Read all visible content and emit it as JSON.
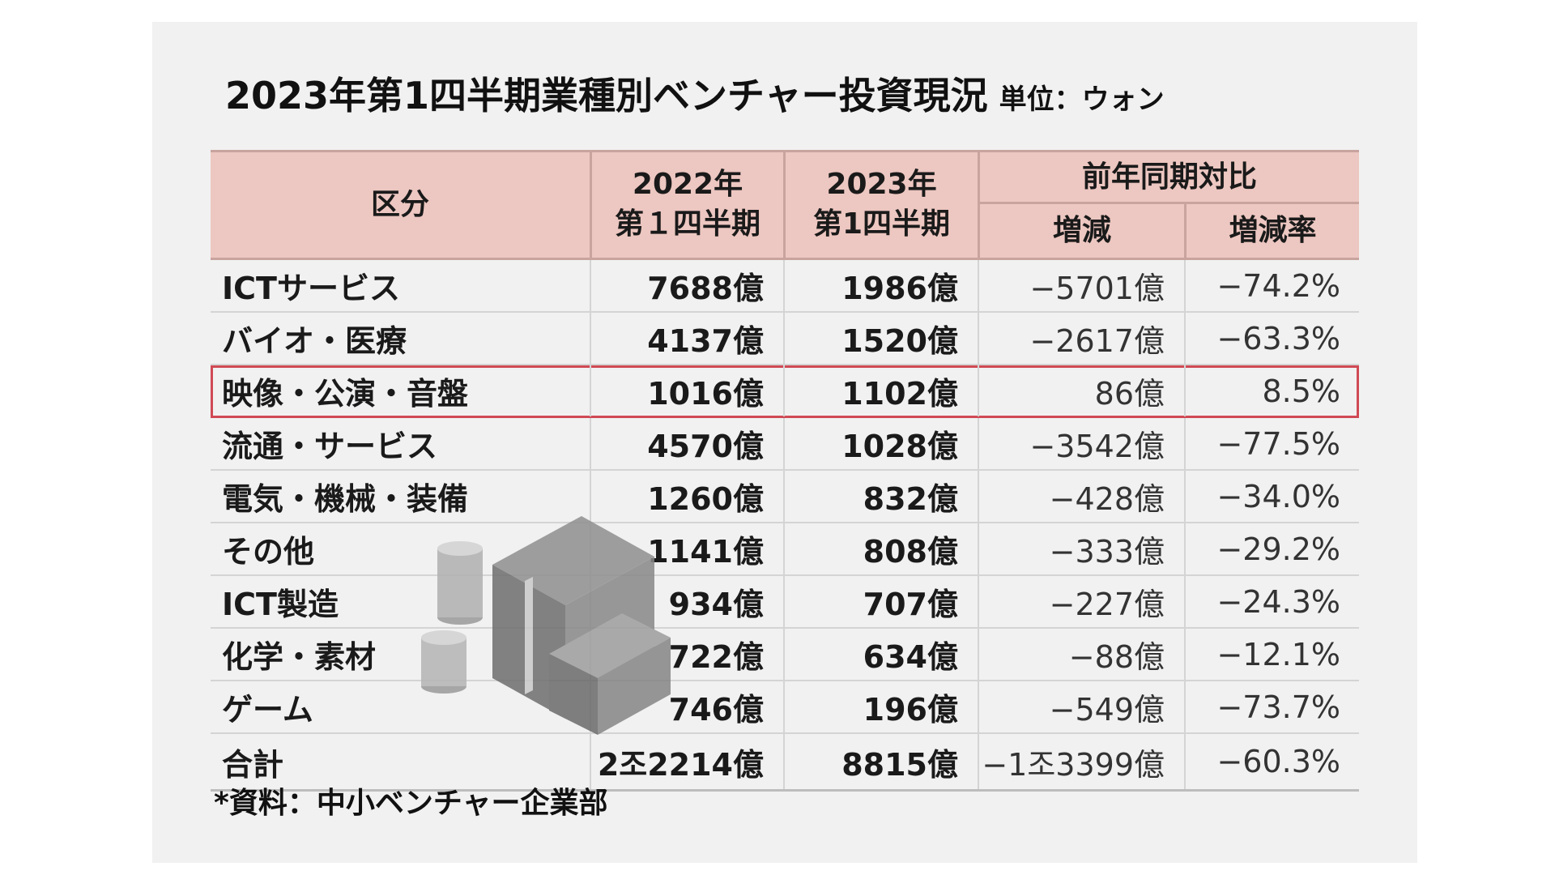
{
  "chart_data": {
    "type": "table",
    "title": "2023年第1四半期業種別ベンチャー投資現況",
    "unit": "単位：ウォン",
    "headers": {
      "category": "区分",
      "y2022": "2022年\n第１四半期",
      "y2023": "2023年\n第1四半期",
      "yoy": "前年同期対比",
      "change": "増減",
      "rate": "増減率"
    },
    "rows": [
      {
        "label": "ICTサービス",
        "v2022": "7688億",
        "v2023": "1986億",
        "change": "−5701億",
        "rate": "−74.2%"
      },
      {
        "label": "バイオ・医療",
        "v2022": "4137億",
        "v2023": "1520億",
        "change": "−2617億",
        "rate": "−63.3%"
      },
      {
        "label": "映像・公演・音盤",
        "v2022": "1016億",
        "v2023": "1102億",
        "change": "86億",
        "rate": "8.5%",
        "highlight": true
      },
      {
        "label": "流通・サービス",
        "v2022": "4570億",
        "v2023": "1028億",
        "change": "−3542億",
        "rate": "−77.5%"
      },
      {
        "label": "電気・機械・装備",
        "v2022": "1260億",
        "v2023": "832億",
        "change": "−428億",
        "rate": "−34.0%"
      },
      {
        "label": "その他",
        "v2022": "1141億",
        "v2023": "808億",
        "change": "−333億",
        "rate": "−29.2%"
      },
      {
        "label": "ICT製造",
        "v2022": "934億",
        "v2023": "707億",
        "change": "−227億",
        "rate": "−24.3%"
      },
      {
        "label": "化学・素材",
        "v2022": "722億",
        "v2023": "634億",
        "change": "−88億",
        "rate": "−12.1%"
      },
      {
        "label": "ゲーム",
        "v2022": "746億",
        "v2023": "196億",
        "change": "−549億",
        "rate": "−73.7%"
      },
      {
        "label": "合計",
        "v2022": "2조2214億",
        "v2023": "8815億",
        "change": "−1조3399億",
        "rate": "−60.3%",
        "total": true
      }
    ],
    "source": "*資料：中小ベンチャー企業部",
    "highlight_color": "#d04a55",
    "header_color": "#edc7c1"
  }
}
